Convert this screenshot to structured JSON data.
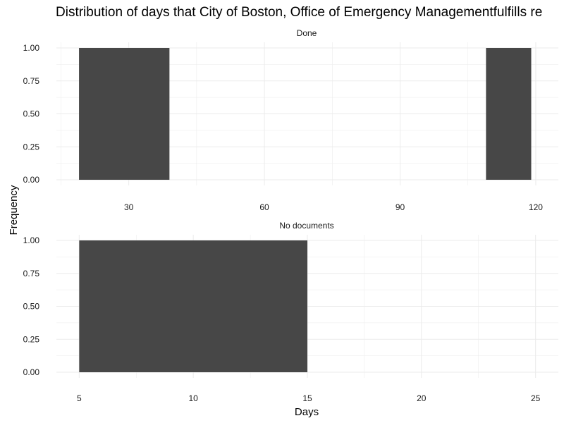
{
  "chart_data": {
    "type": "bar",
    "title": "Distribution of days that City of Boston, Office of Emergency Managementfulfills re",
    "xlabel": "Days",
    "ylabel": "Frequency",
    "grid": true,
    "bar_color": "#474747",
    "grid_color": "#ebebeb",
    "panels": [
      {
        "label": "Done",
        "xlim": [
          14,
          125
        ],
        "ylim": [
          0,
          1
        ],
        "x_ticks": [
          30,
          60,
          90,
          120
        ],
        "y_ticks": [
          0,
          0.25,
          0.5,
          0.75,
          1
        ],
        "y_tick_labels": [
          "0.00",
          "0.25",
          "0.50",
          "0.75",
          "1.00"
        ],
        "bars": [
          {
            "x_start": 19,
            "x_end": 39,
            "value": 1
          },
          {
            "x_start": 109,
            "x_end": 119,
            "value": 1
          }
        ]
      },
      {
        "label": "No documents",
        "xlim": [
          4,
          26
        ],
        "ylim": [
          0,
          1
        ],
        "x_ticks": [
          5,
          10,
          15,
          20,
          25
        ],
        "y_ticks": [
          0,
          0.25,
          0.5,
          0.75,
          1
        ],
        "y_tick_labels": [
          "0.00",
          "0.25",
          "0.50",
          "0.75",
          "1.00"
        ],
        "bars": [
          {
            "x_start": 5,
            "x_end": 15,
            "value": 1
          }
        ]
      }
    ]
  }
}
